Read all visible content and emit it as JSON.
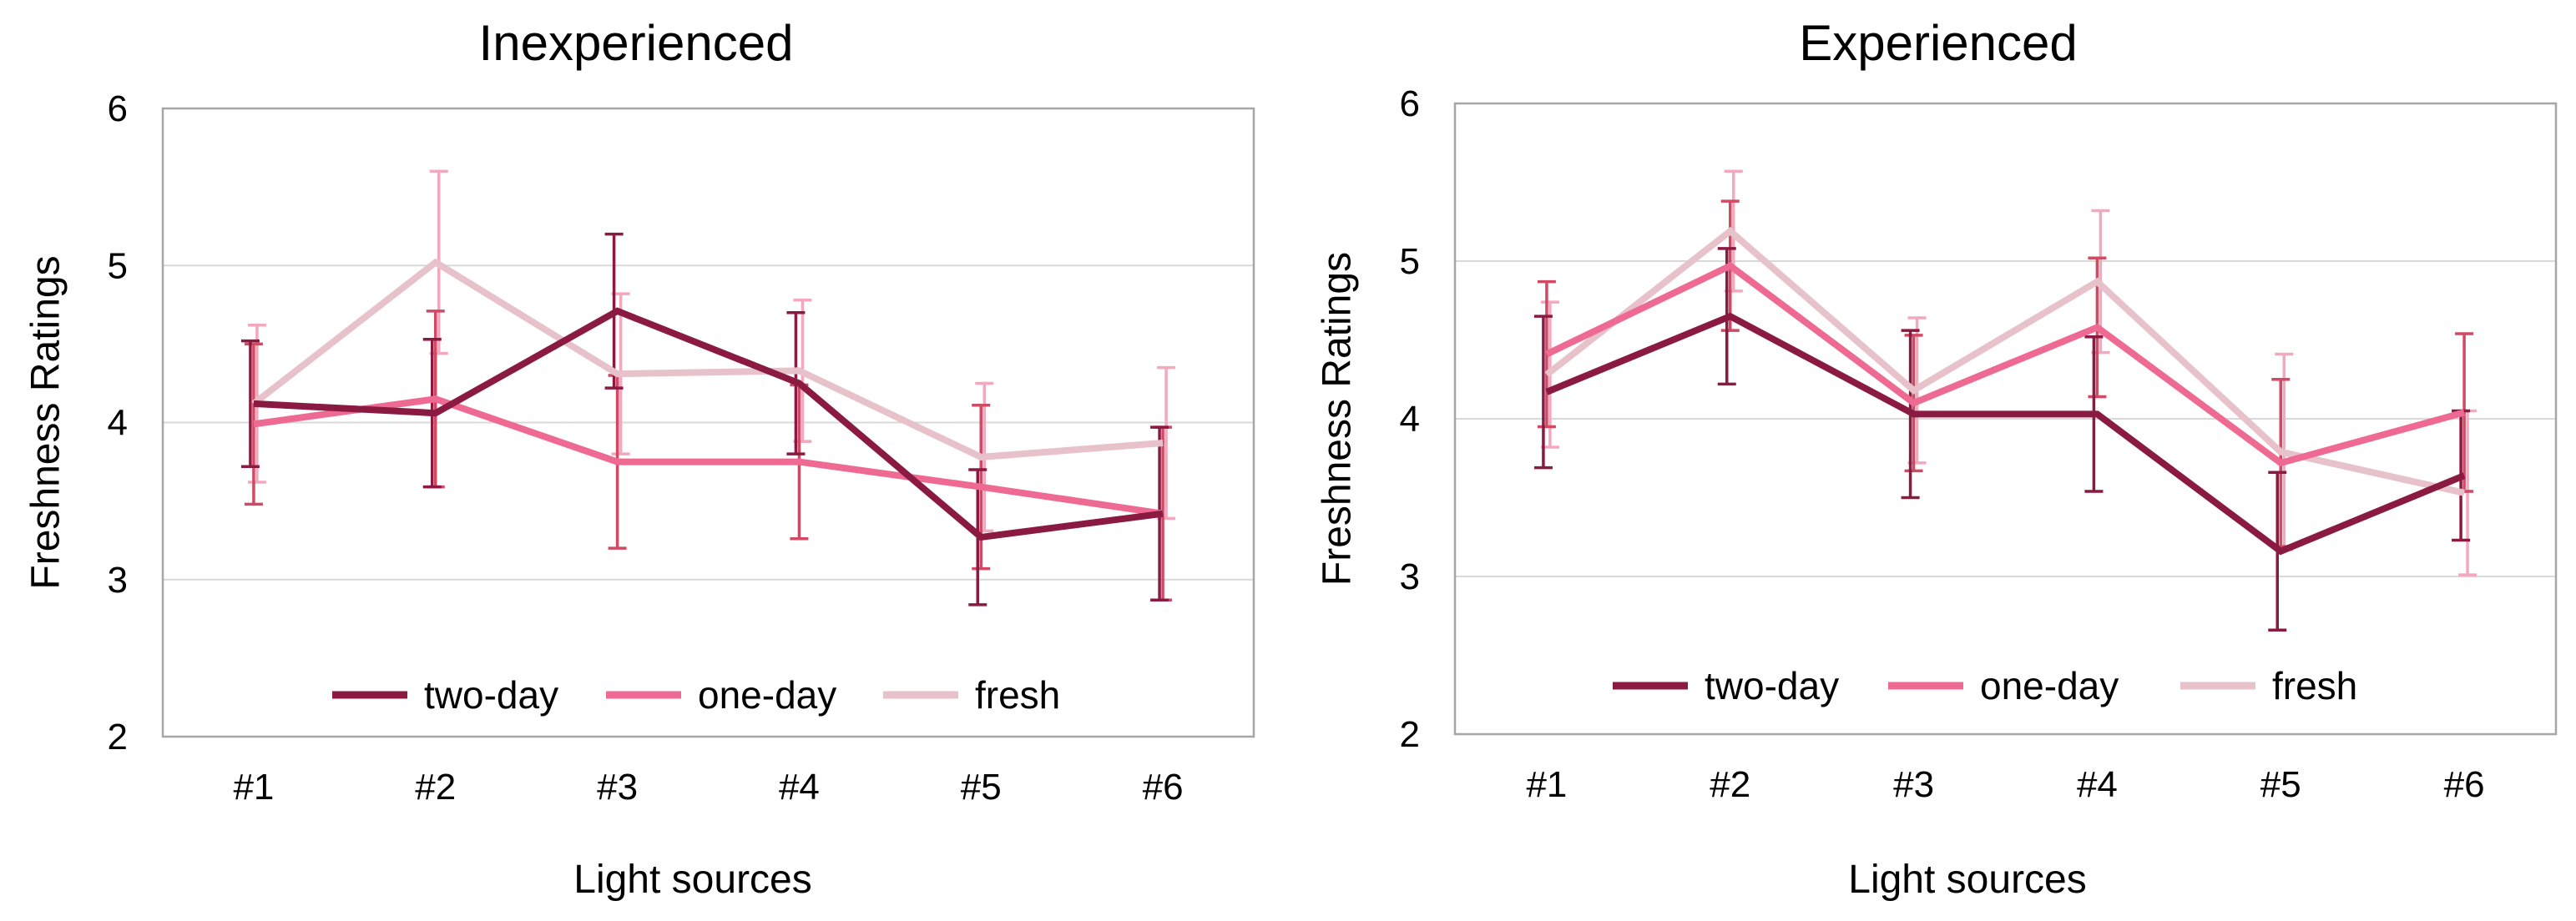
{
  "colors": {
    "two_day": "#8b1a43",
    "one_day": "#ee6a92",
    "fresh": "#e8c2ca",
    "err_two_day": "#8b1a43",
    "err_one_day": "#cf4a62",
    "err_fresh": "#f3a8bd",
    "grid": "#d9d9d9",
    "frame": "#a6a6a6"
  },
  "chart_data": [
    {
      "type": "line",
      "title": "Inexperienced",
      "xlabel": "Light sources",
      "ylabel": "Freshness  Ratings",
      "ylim": [
        2,
        6
      ],
      "yticks": [
        "2",
        "3",
        "4",
        "5",
        "6"
      ],
      "categories": [
        "#1",
        "#2",
        "#3",
        "#4",
        "#5",
        "#6"
      ],
      "legend_position": "bottom-inside",
      "series": [
        {
          "name": "two-day",
          "key": "two_day",
          "values": [
            4.12,
            4.06,
            4.71,
            4.25,
            3.27,
            3.42
          ],
          "err": [
            0.4,
            0.47,
            0.49,
            0.45,
            0.43,
            0.55
          ]
        },
        {
          "name": "one-day",
          "key": "one_day",
          "values": [
            3.99,
            4.15,
            3.75,
            3.75,
            3.59,
            3.42
          ],
          "err": [
            0.51,
            0.56,
            0.55,
            0.49,
            0.52,
            0.55
          ]
        },
        {
          "name": "fresh",
          "key": "fresh",
          "values": [
            4.12,
            5.02,
            4.31,
            4.33,
            3.78,
            3.87
          ],
          "err": [
            0.5,
            0.58,
            0.51,
            0.45,
            0.47,
            0.48
          ]
        }
      ]
    },
    {
      "type": "line",
      "title": "Experienced",
      "xlabel": "Light sources",
      "ylabel": "Freshness  Ratings",
      "ylim": [
        2,
        6
      ],
      "yticks": [
        "2",
        "3",
        "4",
        "5",
        "6"
      ],
      "categories": [
        "#1",
        "#2",
        "#3",
        "#4",
        "#5",
        "#6"
      ],
      "legend_position": "bottom-inside",
      "series": [
        {
          "name": "two-day",
          "key": "two_day",
          "values": [
            4.17,
            4.65,
            4.03,
            4.03,
            3.16,
            3.64
          ],
          "err": [
            0.48,
            0.43,
            0.53,
            0.49,
            0.5,
            0.41
          ]
        },
        {
          "name": "one-day",
          "key": "one_day",
          "values": [
            4.41,
            4.97,
            4.1,
            4.58,
            3.72,
            4.04
          ],
          "err": [
            0.46,
            0.41,
            0.43,
            0.44,
            0.53,
            0.5
          ]
        },
        {
          "name": "fresh",
          "key": "fresh",
          "values": [
            4.28,
            5.19,
            4.18,
            4.87,
            3.79,
            3.53
          ],
          "err": [
            0.46,
            0.38,
            0.46,
            0.45,
            0.62,
            0.52
          ]
        }
      ]
    }
  ]
}
